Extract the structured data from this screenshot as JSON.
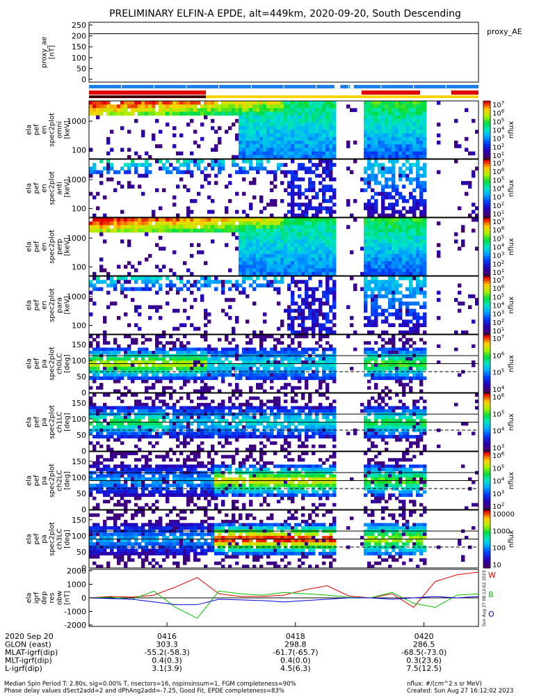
{
  "title": "PRELIMINARY ELFIN-A EPDE, alt=449km, 2020-09-20, South Descending",
  "colors": {
    "status_blue": "#1f7fe8",
    "status_red": "#e00000",
    "status_yellow": "#ffd200",
    "status_dark": "#400000",
    "mag_w": "#e00000",
    "mag_b": "#00c000",
    "mag_o": "#0000e0"
  },
  "chart_data": [
    {
      "id": "proxy_ae",
      "type": "line",
      "ylabel": "proxy_ae\n[nT]",
      "yticks": [
        "250",
        "200",
        "150",
        "100",
        "50",
        "0"
      ],
      "ylim": [
        0,
        250
      ],
      "legend": "proxy_AE",
      "value": 210
    },
    {
      "id": "spec_omni",
      "type": "heatmap",
      "ylabel": "ela\npef\nen\nspec2plot\nomni\n[keV]",
      "yticks": [
        "1000",
        "100"
      ],
      "ylog": true,
      "cbar_ticks": [
        "10^7",
        "10^6",
        "10^5",
        "10^4",
        "10^3",
        "10^2",
        "10^1"
      ],
      "cbar_label": "nflux"
    },
    {
      "id": "spec_anti",
      "type": "heatmap",
      "ylabel": "ela\npef\nen\nspec2plot\nanti\n[keV]",
      "yticks": [
        "1000",
        "100"
      ],
      "ylog": true,
      "cbar_ticks": [
        "10^7",
        "10^6",
        "10^5",
        "10^4",
        "10^3",
        "10^2",
        "10^1"
      ],
      "cbar_label": "nflux"
    },
    {
      "id": "spec_perp",
      "type": "heatmap",
      "ylabel": "ela\npef\nen\nspec2plot\nperp\n[keV]",
      "yticks": [
        "1000",
        "100"
      ],
      "ylog": true,
      "cbar_ticks": [
        "10^7",
        "10^6",
        "10^5",
        "10^4",
        "10^3",
        "10^2",
        "10^1"
      ],
      "cbar_label": "nflux"
    },
    {
      "id": "spec_para",
      "type": "heatmap",
      "ylabel": "ela\npef\nen\nspec2plot\npara\n[keV]",
      "yticks": [
        "1000",
        "100"
      ],
      "ylog": true,
      "cbar_ticks": [
        "10^7",
        "10^6",
        "10^5",
        "10^4",
        "10^3",
        "10^2",
        "10^1"
      ],
      "cbar_label": "nflux"
    },
    {
      "id": "pa_ch0",
      "type": "heatmap",
      "ylabel": "ela\npef\npa\nspec2plot\nch0LC\n[deg]",
      "yticks": [
        "150",
        "100",
        "50",
        "0"
      ],
      "ylim": [
        0,
        180
      ],
      "cbar_ticks": [
        "10^7",
        "10^6",
        "10^5",
        "10^4"
      ],
      "cbar_label": "nflux"
    },
    {
      "id": "pa_ch1",
      "type": "heatmap",
      "ylabel": "ela\npef\npa\nspec2plot\nch1LC\n[deg]",
      "yticks": [
        "150",
        "100",
        "50",
        "0"
      ],
      "ylim": [
        0,
        180
      ],
      "cbar_ticks": [
        "10^6",
        "10^5",
        "10^4",
        "10^3"
      ],
      "cbar_label": "nflux"
    },
    {
      "id": "pa_ch2",
      "type": "heatmap",
      "ylabel": "ela\npef\npa\nspec2plot\nch2LC\n[deg]",
      "yticks": [
        "150",
        "100",
        "50",
        "0"
      ],
      "ylim": [
        0,
        180
      ],
      "cbar_ticks": [
        "10^6",
        "10^5",
        "10^4",
        "10^3",
        "10^2"
      ],
      "cbar_label": "nflux"
    },
    {
      "id": "pa_ch3",
      "type": "heatmap",
      "ylabel": "ela\npef\npa\nspec2plot\nch3LC\n[deg]",
      "yticks": [
        "150",
        "100",
        "50",
        "0"
      ],
      "ylim": [
        0,
        180
      ],
      "cbar_ticks": [
        "10000",
        "1000",
        "100",
        "10"
      ],
      "cbar_label": "nflux"
    },
    {
      "id": "mag",
      "type": "line",
      "ylabel": "ela\nigrf\ndep\nres\nobw\n[nT]",
      "yticks": [
        "2000",
        "1000",
        "0",
        "-1000",
        "-2000"
      ],
      "ylim": [
        -2000,
        2000
      ],
      "series": [
        {
          "name": "W",
          "values": [
            0,
            100,
            50,
            200,
            800,
            1500,
            300,
            100,
            100,
            200,
            600,
            900,
            150,
            0,
            300,
            -700,
            1200,
            1700,
            1900
          ]
        },
        {
          "name": "B",
          "values": [
            0,
            50,
            -100,
            500,
            -700,
            -1500,
            500,
            300,
            200,
            400,
            300,
            200,
            50,
            0,
            400,
            -400,
            -700,
            200,
            300
          ]
        },
        {
          "name": "O",
          "values": [
            0,
            -50,
            -100,
            -300,
            -500,
            -500,
            -100,
            -150,
            -200,
            -300,
            -200,
            -100,
            0,
            0,
            -100,
            0,
            100,
            0,
            100
          ]
        }
      ]
    }
  ],
  "status_bars": [
    {
      "color": "blue",
      "segments": [
        [
          0,
          0.63
        ],
        [
          0.645,
          0.67
        ],
        [
          0.68,
          1.0
        ]
      ]
    },
    {
      "color": "red",
      "segments": [
        [
          0,
          0.3
        ],
        [
          0.7,
          0.85
        ],
        [
          0.93,
          1.0
        ]
      ]
    },
    {
      "color": "yellow",
      "segments": [
        [
          0,
          1.0
        ]
      ]
    },
    {
      "color": "dark",
      "segments": [
        [
          0,
          0.3
        ]
      ]
    }
  ],
  "xaxis": {
    "rows": [
      {
        "label": "2020 Sep 20",
        "values": [
          "0416",
          "0418",
          "0420"
        ]
      },
      {
        "label": "GLON (east)",
        "values": [
          "303.3",
          "298.8",
          "286.5"
        ]
      },
      {
        "label": "MLAT-igrf(dip)",
        "values": [
          "-55.2(-58.3)",
          "-61.7(-65.7)",
          "-68.5(-73.0)"
        ]
      },
      {
        "label": "MLT-igrf(dip)",
        "values": [
          "0.4(0.3)",
          "0.4(0.0)",
          "0.3(23.6)"
        ]
      },
      {
        "label": "L-igrf(dip)",
        "values": [
          "3.1(3.9)",
          "4.5(6.3)",
          "7.5(12.5)"
        ]
      }
    ]
  },
  "side_stamp": "Sun Aug 27 08:12:02 2023",
  "footer": {
    "line1": "Median Spin Period T: 2.80s, sig=0.00% T, nsectors=16, nspinsinsum=1, FGM completeness=90%",
    "line2": "Phase delay values dSect2add=2 and dPhAng2add=-7.25, Good Fit, EPDE completeness=83%",
    "right1": "nflux: #/(cm^2 s sr MeV)",
    "right2": "Created: Sun Aug 27 16:12:02 2023"
  }
}
